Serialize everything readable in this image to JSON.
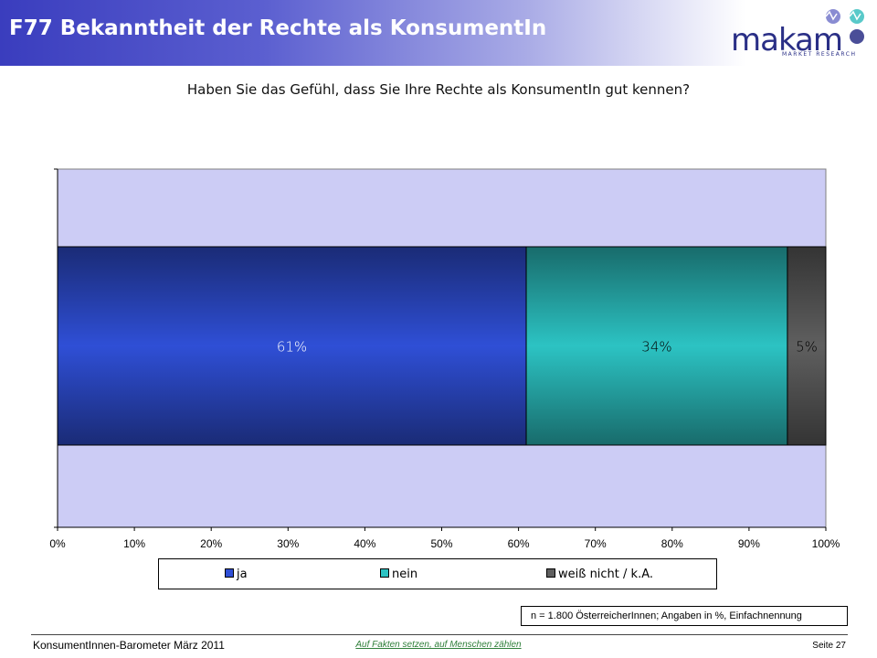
{
  "header": {
    "title": "F77 Bekanntheit der Rechte als KonsumentIn"
  },
  "logo": {
    "name": "makam",
    "subtitle": "MARKET RESEARCH"
  },
  "question": "Haben Sie das Gefühl, dass Sie Ihre Rechte als KonsumentIn gut kennen?",
  "chart_data": {
    "type": "bar",
    "orientation": "horizontal",
    "stacked": true,
    "categories": [
      ""
    ],
    "series": [
      {
        "name": "ja",
        "values": [
          61
        ],
        "label": "61%",
        "color": "#2f4fd6"
      },
      {
        "name": "nein",
        "values": [
          34
        ],
        "label": "34%",
        "color": "#2cc3c3"
      },
      {
        "name": "weiß nicht / k.A.",
        "values": [
          5
        ],
        "label": "5%",
        "color": "#5f5f5f"
      }
    ],
    "xlim": [
      0,
      100
    ],
    "xticks": [
      "0%",
      "10%",
      "20%",
      "30%",
      "40%",
      "50%",
      "60%",
      "70%",
      "80%",
      "90%",
      "100%"
    ],
    "grid": false,
    "legend_position": "bottom",
    "plot_background": "#ccccf5"
  },
  "note": "n = 1.800 ÖsterreicherInnen; Angaben in %, Einfachnennung",
  "footer": {
    "left": "KonsumentInnen-Barometer März  2011",
    "center": "Auf Fakten setzen, auf Menschen zählen",
    "right": "Seite 27"
  }
}
